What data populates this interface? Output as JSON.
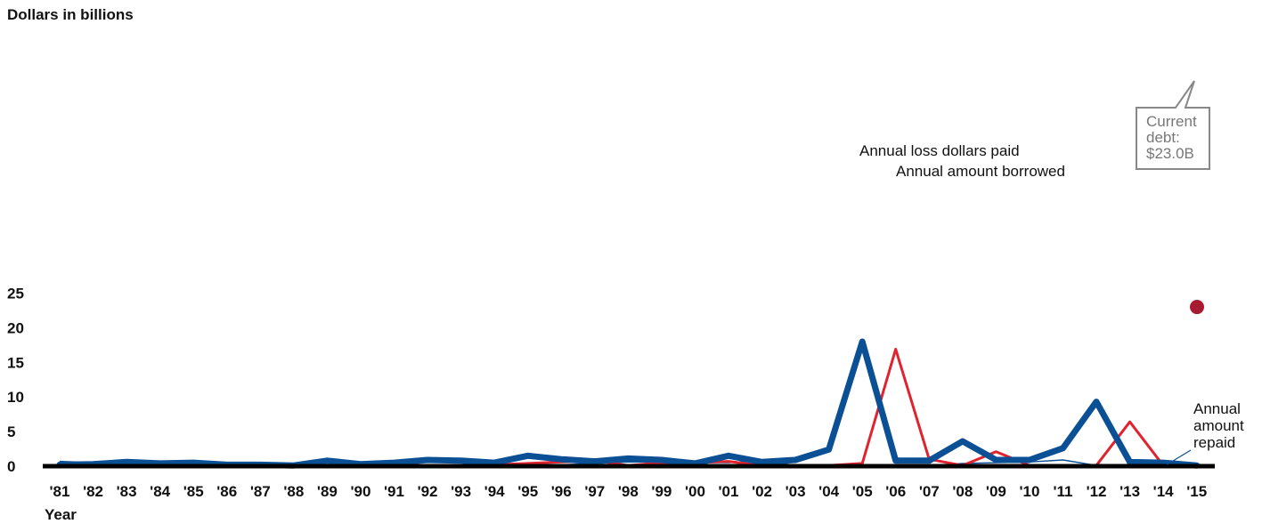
{
  "chart_data": {
    "type": "line",
    "ylabel": "Dollars in billions",
    "xlabel": "Year",
    "ylim": [
      0,
      25
    ],
    "yticks": [
      "0",
      "5",
      "10",
      "15",
      "20",
      "25"
    ],
    "categories": [
      "'81",
      "'82",
      "'83",
      "'84",
      "'85",
      "'86",
      "'87",
      "'88",
      "'89",
      "'90",
      "'91",
      "'92",
      "'93",
      "'94",
      "'95",
      "'96",
      "'97",
      "'98",
      "'99",
      "'00",
      "'01",
      "'02",
      "'03",
      "'04",
      "'05",
      "'06",
      "'07",
      "'08",
      "'09",
      "'10",
      "'11",
      "'12",
      "'13",
      "'14",
      "'15"
    ],
    "series": [
      {
        "name": "Annual loss dollars paid",
        "color": "#0b4f95",
        "values": [
          0.2,
          0.3,
          0.6,
          0.4,
          0.5,
          0.2,
          0.2,
          0.1,
          0.8,
          0.3,
          0.5,
          0.9,
          0.8,
          0.5,
          1.5,
          1.0,
          0.7,
          1.1,
          0.9,
          0.4,
          1.5,
          0.6,
          0.9,
          2.4,
          18.0,
          0.8,
          0.8,
          3.6,
          0.9,
          0.9,
          2.6,
          9.3,
          0.6,
          0.5,
          0.1
        ]
      },
      {
        "name": "Annual amount borrowed",
        "color": "#e0232e",
        "values": [
          0.0,
          0.0,
          0.2,
          0.0,
          0.2,
          0.0,
          0.0,
          0.0,
          0.0,
          0.0,
          0.1,
          0.1,
          0.1,
          0.2,
          0.4,
          0.6,
          0.8,
          0.1,
          0.5,
          0.5,
          0.7,
          0.1,
          0.1,
          0.1,
          0.4,
          16.9,
          1.0,
          0.1,
          2.1,
          0.1,
          0.1,
          0.1,
          6.4,
          0.1,
          0.1
        ]
      },
      {
        "name": "Annual amount repaid",
        "color": "#0b4f95",
        "values": [
          0.7,
          0.5,
          0.3,
          0.2,
          0.2,
          0.2,
          0.1,
          0.1,
          0.1,
          0.2,
          0.2,
          0.2,
          0.2,
          0.3,
          0.3,
          0.2,
          0.4,
          0.6,
          0.6,
          0.5,
          0.5,
          0.8,
          0.1,
          0.1,
          0.1,
          0.1,
          0.1,
          0.4,
          0.5,
          0.6,
          0.9,
          0.1,
          0.1,
          0.1,
          0.1
        ]
      }
    ],
    "annotations": {
      "loss_label": "Annual loss dollars paid",
      "borrowed_label": "Annual amount borrowed",
      "repaid_label": [
        "Annual",
        "amount",
        "repaid"
      ]
    },
    "current_debt": {
      "value": 23.0,
      "label": [
        "Current",
        "debt:",
        "$23.0B"
      ],
      "color": "#a81c32"
    }
  }
}
